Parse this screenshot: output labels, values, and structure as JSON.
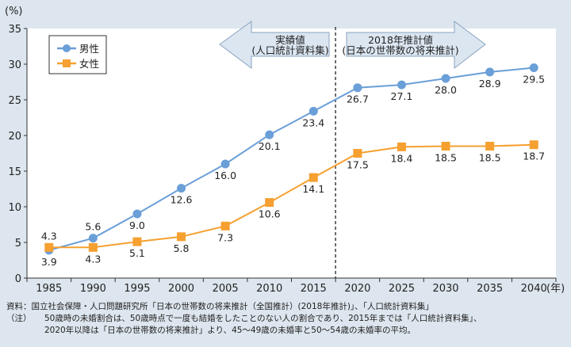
{
  "chart_data": {
    "type": "line",
    "ylabel": "(%)",
    "xlabel": "(年)",
    "categories": [
      "1985",
      "1990",
      "1995",
      "2000",
      "2005",
      "2010",
      "2015",
      "2020",
      "2025",
      "2030",
      "2035",
      "2040"
    ],
    "ylim": [
      0,
      35
    ],
    "yticks": [
      0,
      5,
      10,
      15,
      20,
      25,
      30,
      35
    ],
    "grid": false,
    "legend_placement": "top-left",
    "series": [
      {
        "name": "男性",
        "color": "#6a9fd8",
        "marker": "circle",
        "values": [
          3.9,
          5.6,
          9.0,
          12.6,
          16.0,
          20.1,
          23.4,
          26.7,
          27.1,
          28.0,
          28.9,
          29.5
        ]
      },
      {
        "name": "女性",
        "color": "#f5a030",
        "marker": "square",
        "values": [
          4.3,
          4.3,
          5.1,
          5.8,
          7.3,
          10.6,
          14.1,
          17.5,
          18.4,
          18.5,
          18.5,
          18.7
        ]
      }
    ],
    "annotations": {
      "actual": {
        "line1": "実績値",
        "line2": "(人口統計資料集)"
      },
      "projection": {
        "line1": "2018年推計値",
        "line2": "(日本の世帯数の将来推計)"
      }
    },
    "divider_between": [
      "2015",
      "2020"
    ]
  },
  "notes": {
    "source": "資料：国立社会保障・人口問題研究所「日本の世帯数の将来推計（全国推計）(2018年推計)」、「人口統計資料集」",
    "note_label": "（注）",
    "note_line1": "50歳時の未婚割合は、50歳時点で一度も結婚をしたことのない人の割合であり、2015年までは「人口統計資料集」、",
    "note_line2": "2020年以降は「日本の世帯数の将来推計」より、45～49歳の未婚率と50～54歳の未婚率の平均。"
  }
}
